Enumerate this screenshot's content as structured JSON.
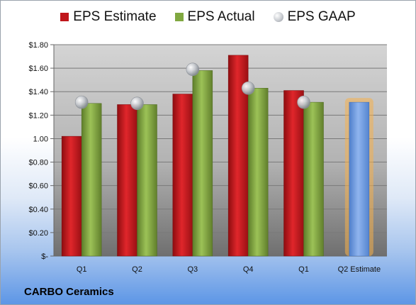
{
  "company": "CARBO Ceramics",
  "chart_data": {
    "type": "bar",
    "categories": [
      "Q1",
      "Q2",
      "Q3",
      "Q4",
      "Q1",
      "Q2 Estimate"
    ],
    "series": [
      {
        "name": "EPS Estimate",
        "values": [
          1.02,
          1.29,
          1.38,
          1.71,
          1.41,
          null
        ],
        "color": "#c0161b"
      },
      {
        "name": "EPS Actual",
        "values": [
          1.3,
          1.29,
          1.58,
          1.43,
          1.31,
          null
        ],
        "color": "#80a840"
      },
      {
        "name": "EPS GAAP",
        "values": [
          1.31,
          1.3,
          1.59,
          1.43,
          1.31,
          null
        ],
        "color": "#b5b9bf"
      }
    ],
    "forecast": {
      "category": "Q2 Estimate",
      "value": 1.31,
      "color": "#6e9be0",
      "glow": "#f5b14d"
    },
    "ylim": [
      0,
      1.8
    ],
    "yticks": [
      {
        "value": 1.8,
        "label": "$1.80"
      },
      {
        "value": 1.6,
        "label": "$1.60"
      },
      {
        "value": 1.4,
        "label": "$1.40"
      },
      {
        "value": 1.2,
        "label": "$1.20"
      },
      {
        "value": 1.0,
        "label": "1.00"
      },
      {
        "value": 0.8,
        "label": "$0.80"
      },
      {
        "value": 0.6,
        "label": "$0.60"
      },
      {
        "value": 0.4,
        "label": "$0.40"
      },
      {
        "value": 0.2,
        "label": "$0.20"
      },
      {
        "value": 0.0,
        "label": "$-"
      }
    ],
    "grid": true,
    "legend_position": "top"
  }
}
